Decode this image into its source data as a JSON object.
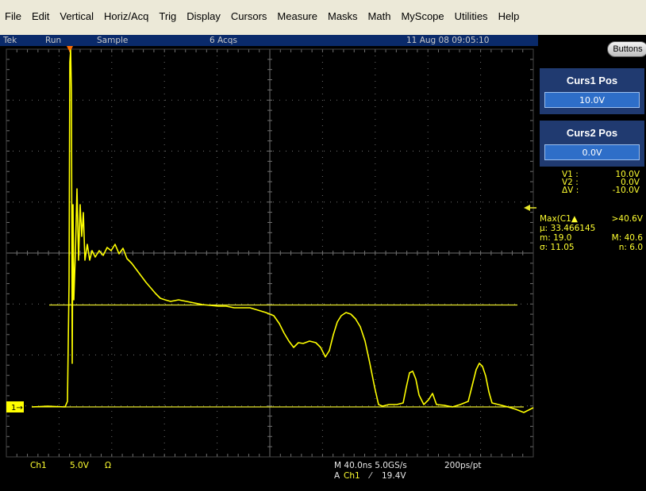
{
  "menu": [
    "File",
    "Edit",
    "Vertical",
    "Horiz/Acq",
    "Trig",
    "Display",
    "Cursors",
    "Measure",
    "Masks",
    "Math",
    "MyScope",
    "Utilities",
    "Help"
  ],
  "status": {
    "brand": "Tek",
    "run_state": "Run",
    "mode": "Sample",
    "acqs": "6 Acqs",
    "datetime": "11 Aug 08 09:05:10"
  },
  "panel": {
    "buttons_label": "Buttons",
    "curs1_title": "Curs1 Pos",
    "curs1_value": "10.0V",
    "curs2_title": "Curs2 Pos",
    "curs2_value": "0.0V",
    "v1_label": "V1 :",
    "v1_value": "10.0V",
    "v2_label": "V2 :",
    "v2_value": "0.0V",
    "dv_label": "ΔV :",
    "dv_value": "-10.0V"
  },
  "measure": {
    "name": "Max(C1",
    "value": ">40.6V",
    "mu_label": "μ:",
    "mu_value": "33.466145",
    "m_label": "m: 19.0",
    "M_label": "M: 40.6",
    "sigma_label": "σ: 11.05",
    "n_label": "n: 6.0"
  },
  "bottom": {
    "channel": "Ch1",
    "scale": "5.0V",
    "coupling": "Ω",
    "timebase": "M 40.0ns 5.0GS/s",
    "resolution": "200ps/pt",
    "trig_source_prefix": "A",
    "trig_source": "Ch1",
    "trig_slope": "⁄",
    "trig_level": "19.4V"
  },
  "ch1_marker": "1",
  "colors": {
    "trace": "#ffff00",
    "cursor_line": "#e6e62a",
    "graticule": "#707070",
    "menubar": "#ece9d8",
    "statusbar": "#0a2a6a",
    "cursor_box": "#203a70"
  }
}
